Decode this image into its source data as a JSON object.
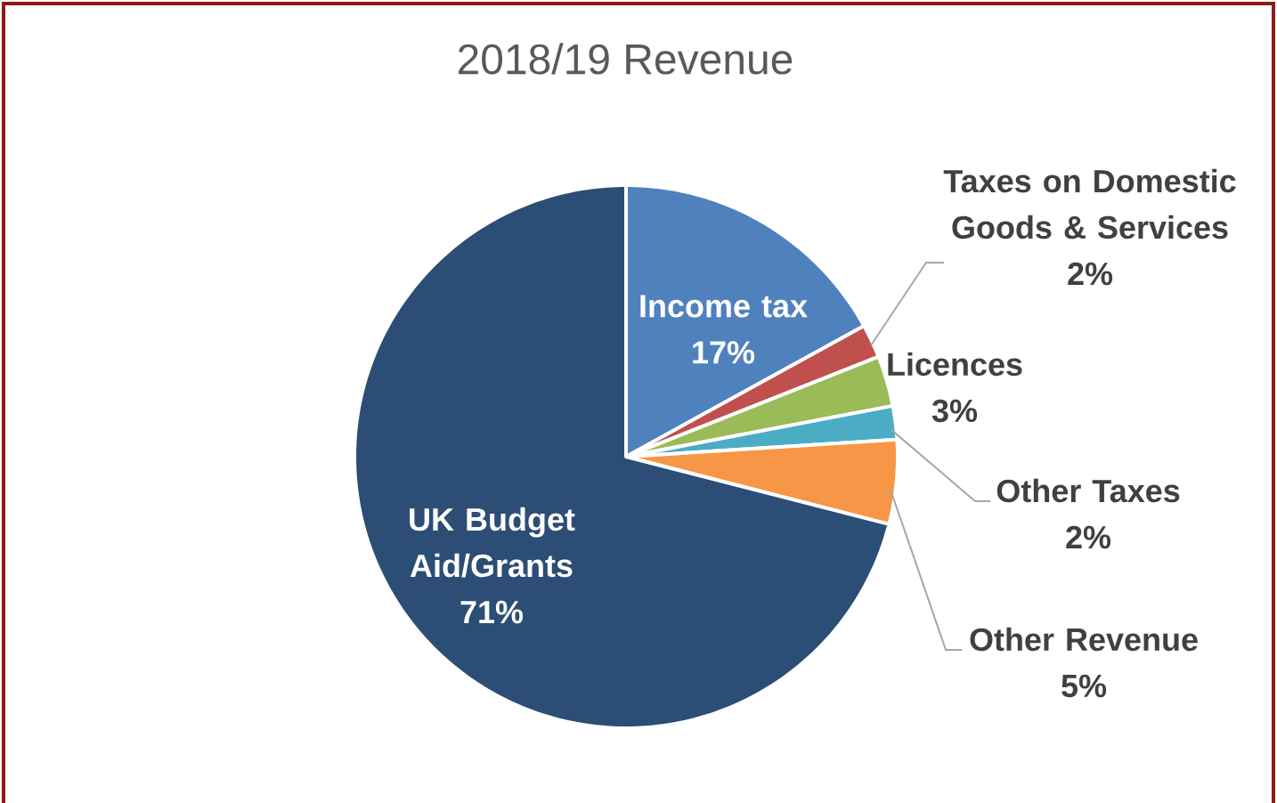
{
  "chart_data": {
    "type": "pie",
    "title": "2018/19 Revenue",
    "categories": [
      "Income tax",
      "Taxes on Domestic Goods & Services",
      "Licences",
      "Other Taxes",
      "Other Revenue",
      "UK Budget Aid/Grants"
    ],
    "values": [
      17,
      2,
      3,
      2,
      5,
      71
    ],
    "value_labels": [
      "17%",
      "2%",
      "3%",
      "2%",
      "5%",
      "71%"
    ],
    "colors": [
      "#4f81bd",
      "#c0504d",
      "#9bbb59",
      "#4bacc6",
      "#f79646",
      "#2c4d75"
    ],
    "legend": false
  }
}
